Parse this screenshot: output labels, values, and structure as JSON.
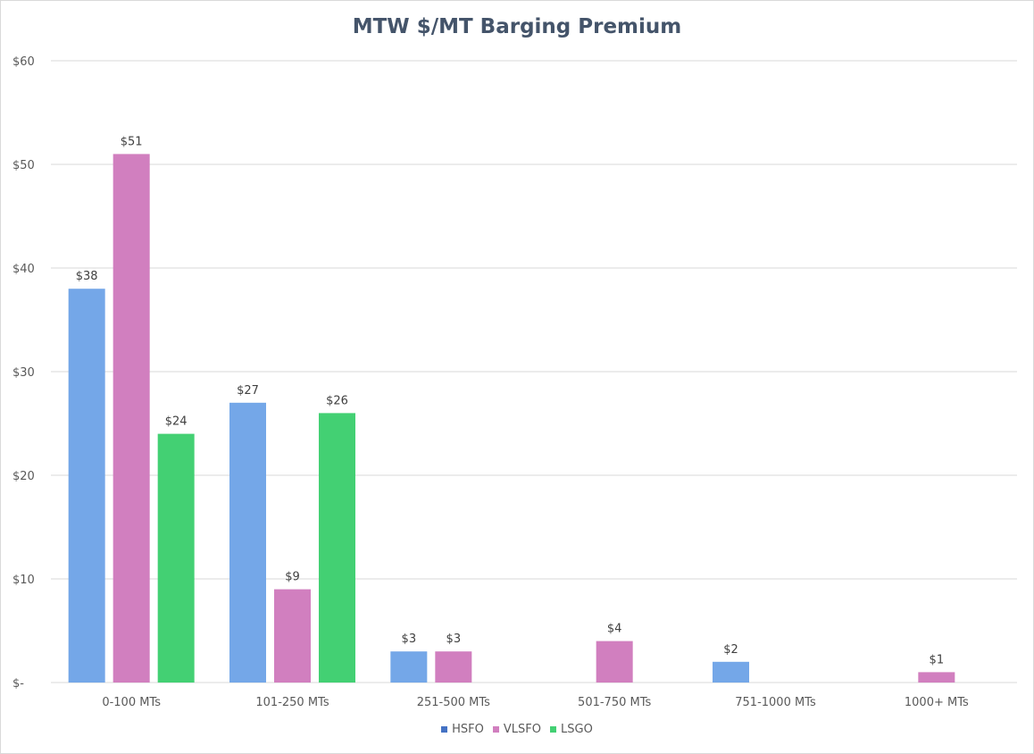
{
  "chart_data": {
    "type": "bar",
    "title": "MTW $/MT Barging Premium",
    "categories": [
      "0-100 MTs",
      "101-250 MTs",
      "251-500 MTs",
      "501-750 MTs",
      "751-1000 MTs",
      "1000+ MTs"
    ],
    "series": [
      {
        "name": "HSFO",
        "values": [
          38,
          27,
          3,
          null,
          2,
          null
        ],
        "labels": [
          "$38",
          "$27",
          "$3",
          "",
          "$2",
          ""
        ]
      },
      {
        "name": "VLSFO",
        "values": [
          51,
          9,
          3,
          4,
          null,
          1
        ],
        "labels": [
          "$51",
          "$9",
          "$3",
          "$4",
          "",
          "$1"
        ]
      },
      {
        "name": "LSGO",
        "values": [
          24,
          26,
          null,
          null,
          null,
          null
        ],
        "labels": [
          "$24",
          "$26",
          "",
          "",
          "",
          ""
        ]
      }
    ],
    "ylim": [
      0,
      60
    ],
    "yticks": [
      0,
      10,
      20,
      30,
      40,
      50,
      60
    ],
    "ytick_labels": [
      "$-",
      "$10",
      "$20",
      "$30",
      "$40",
      "$50",
      "$60"
    ],
    "grid": true,
    "legend_position": "bottom",
    "colors": {
      "HSFO_bar": "#74a7e8",
      "HSFO_legend": "#4472c4",
      "VLSFO": "#d17fbf",
      "LSGO": "#43d073",
      "title": "#44546a",
      "grid": "#d9d9d9"
    }
  }
}
